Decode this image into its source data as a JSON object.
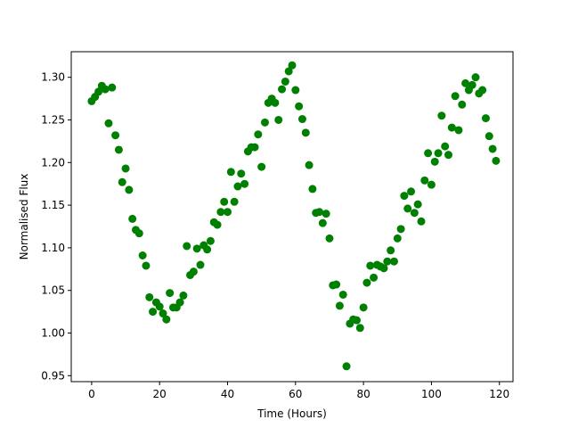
{
  "chart_data": {
    "type": "scatter",
    "title": "",
    "xlabel": "Time (Hours)",
    "ylabel": "Normalised Flux",
    "xlim": [
      -6,
      124
    ],
    "ylim": [
      0.943,
      1.33
    ],
    "x_ticks": [
      0,
      20,
      40,
      60,
      80,
      100,
      120
    ],
    "x_tick_labels": [
      "0",
      "20",
      "40",
      "60",
      "80",
      "100",
      "120"
    ],
    "y_ticks": [
      0.95,
      1.0,
      1.05,
      1.1,
      1.15,
      1.2,
      1.25,
      1.3
    ],
    "y_tick_labels": [
      "0.95",
      "1.00",
      "1.05",
      "1.10",
      "1.15",
      "1.20",
      "1.25",
      "1.30"
    ],
    "grid": false,
    "marker_color": "#008000",
    "series": [
      {
        "x": [
          0,
          1,
          2,
          3,
          4,
          5,
          6,
          7,
          8,
          9,
          10,
          11,
          12,
          13,
          14,
          15,
          16,
          17,
          18,
          19,
          20,
          21,
          22,
          23,
          24,
          25,
          26,
          27,
          28,
          29,
          30,
          31,
          32,
          33,
          34,
          35,
          36,
          37,
          38,
          39,
          40,
          41,
          42,
          43,
          44,
          45,
          46,
          47,
          48,
          49,
          50,
          51,
          52,
          53,
          54,
          55,
          56,
          57,
          58,
          59,
          60,
          61,
          62,
          63,
          64,
          65,
          66,
          67,
          68,
          69,
          70,
          71,
          72,
          73,
          74,
          75,
          76,
          77,
          78,
          79,
          80,
          81,
          82,
          83,
          84,
          85,
          86,
          87,
          88,
          89,
          90,
          91,
          92,
          93,
          94,
          95,
          96,
          97,
          98,
          99,
          100,
          101,
          102,
          103,
          104,
          105,
          106,
          107,
          108,
          109,
          110,
          111,
          112,
          113,
          114,
          115,
          116,
          117,
          118,
          119
        ],
        "y": [
          1.272,
          1.277,
          1.283,
          1.29,
          1.286,
          1.246,
          1.288,
          1.232,
          1.215,
          1.177,
          1.193,
          1.168,
          1.134,
          1.121,
          1.117,
          1.091,
          1.079,
          1.042,
          1.025,
          1.036,
          1.031,
          1.023,
          1.016,
          1.047,
          1.03,
          1.03,
          1.036,
          1.044,
          1.102,
          1.068,
          1.072,
          1.099,
          1.08,
          1.103,
          1.098,
          1.108,
          1.13,
          1.127,
          1.142,
          1.154,
          1.142,
          1.189,
          1.154,
          1.172,
          1.187,
          1.175,
          1.213,
          1.218,
          1.218,
          1.233,
          1.195,
          1.247,
          1.27,
          1.275,
          1.27,
          1.25,
          1.286,
          1.295,
          1.307,
          1.314,
          1.285,
          1.266,
          1.251,
          1.235,
          1.197,
          1.169,
          1.141,
          1.142,
          1.129,
          1.14,
          1.111,
          1.056,
          1.057,
          1.032,
          1.045,
          0.961,
          1.011,
          1.016,
          1.015,
          1.006,
          1.03,
          1.059,
          1.079,
          1.065,
          1.08,
          1.078,
          1.076,
          1.084,
          1.097,
          1.084,
          1.111,
          1.122,
          1.161,
          1.146,
          1.166,
          1.141,
          1.151,
          1.131,
          1.179,
          1.211,
          1.174,
          1.201,
          1.211,
          1.255,
          1.219,
          1.209,
          1.241,
          1.278,
          1.238,
          1.268,
          1.293,
          1.285,
          1.291,
          1.3,
          1.281,
          1.285,
          1.252,
          1.231,
          1.216,
          1.202
        ]
      }
    ]
  }
}
